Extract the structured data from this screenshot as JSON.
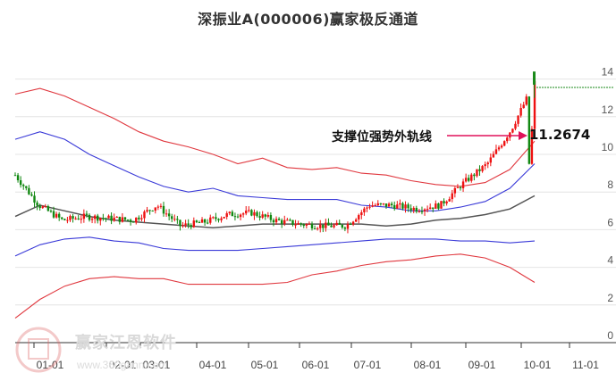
{
  "title": "深振业A(000006)赢家极反通道",
  "watermark": {
    "brand": "赢家江恩软件",
    "url": "www.360gann.com"
  },
  "annotation": {
    "label": "支撑位强势外轨线",
    "value": "11.2674"
  },
  "colors": {
    "upper_outer": "#e0383f",
    "upper_inner": "#3a3ad8",
    "middle": "#555555",
    "up": "#ee1111",
    "down": "#118811",
    "arrow": "#e0105a",
    "target": "#1a8a1a"
  },
  "chart_data": {
    "type": "candlestick_with_bands",
    "title": "深振业A(000006)赢家极反通道",
    "xlabel": "",
    "ylabel": "",
    "ylim": [
      0,
      15
    ],
    "y_ticks": [
      0,
      2,
      4,
      6,
      8,
      10,
      12,
      14
    ],
    "x_ticks": [
      "01-01",
      "02-01",
      "03-01",
      "04-01",
      "05-01",
      "06-01",
      "07-01",
      "08-01",
      "09-01",
      "10-01",
      "11-01"
    ],
    "grid": true,
    "annotation": {
      "text": "支撑位强势外轨线",
      "value": 11.2674
    },
    "target_line": 13.8,
    "series": [
      {
        "name": "upper_outer",
        "color": "#e0383f",
        "values": [
          13.2,
          13.5,
          13.1,
          12.5,
          11.9,
          11.2,
          10.7,
          10.4,
          10.0,
          9.5,
          9.8,
          9.3,
          9.2,
          9.3,
          9.0,
          8.9,
          8.6,
          8.4,
          8.3,
          8.5,
          9.2,
          10.7
        ]
      },
      {
        "name": "upper_inner",
        "color": "#3a3ad8",
        "values": [
          10.8,
          11.2,
          10.8,
          10.0,
          9.4,
          8.8,
          8.3,
          8.0,
          8.2,
          7.8,
          7.7,
          7.6,
          7.6,
          7.6,
          7.3,
          7.2,
          7.0,
          7.0,
          7.2,
          7.5,
          8.2,
          9.5
        ]
      },
      {
        "name": "middle",
        "color": "#555555",
        "values": [
          6.7,
          7.3,
          7.0,
          6.7,
          6.5,
          6.4,
          6.3,
          6.2,
          6.1,
          6.2,
          6.3,
          6.3,
          6.3,
          6.3,
          6.3,
          6.2,
          6.3,
          6.5,
          6.6,
          6.8,
          7.1,
          7.8
        ]
      },
      {
        "name": "lower_inner",
        "color": "#3a3ad8",
        "values": [
          4.6,
          5.2,
          5.5,
          5.6,
          5.4,
          5.3,
          5.0,
          4.9,
          4.9,
          4.9,
          5.0,
          5.1,
          5.2,
          5.3,
          5.4,
          5.5,
          5.5,
          5.5,
          5.4,
          5.4,
          5.3,
          5.4
        ]
      },
      {
        "name": "lower_outer",
        "color": "#e0383f",
        "values": [
          1.3,
          2.3,
          3.0,
          3.4,
          3.5,
          3.4,
          3.4,
          3.1,
          3.1,
          3.1,
          3.1,
          3.2,
          3.6,
          3.8,
          4.1,
          4.3,
          4.4,
          4.6,
          4.7,
          4.5,
          4.0,
          3.2
        ]
      },
      {
        "name": "close",
        "color": "#333333",
        "values": [
          8.9,
          7.3,
          6.5,
          6.7,
          6.6,
          6.5,
          7.3,
          6.2,
          6.4,
          6.8,
          6.9,
          6.5,
          6.3,
          6.2,
          6.2,
          7.3,
          7.3,
          7.1,
          7.3,
          8.5,
          9.5,
          11.3,
          13.8
        ]
      }
    ]
  }
}
